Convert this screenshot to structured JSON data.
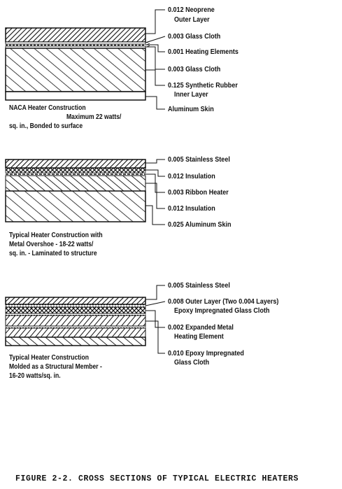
{
  "figure_title": "FIGURE 2-2.  CROSS SECTIONS OF TYPICAL ELECTRIC HEATERS",
  "panels": [
    {
      "labels": [
        "0.012 Neoprene",
        "Outer Layer",
        "0.003 Glass Cloth",
        "0.001 Heating Elements",
        "0.003 Glass Cloth",
        "0.125 Synthetic Rubber",
        "Inner Layer",
        "Aluminum Skin"
      ],
      "caption": [
        "NACA Heater Construction",
        "Maximum 22 watts/",
        "sq. in., Bonded to surface"
      ]
    },
    {
      "labels": [
        "0.005 Stainless Steel",
        "0.012 Insulation",
        "0.003 Ribbon Heater",
        "0.012 Insulation",
        "0.025 Aluminum Skin"
      ],
      "caption": [
        "Typical Heater Construction with",
        "Metal Overshoe - 18-22 watts/",
        "sq. in. - Laminated to structure"
      ]
    },
    {
      "labels": [
        "0.005 Stainless Steel",
        "0.008 Outer Layer (Two 0.004 Layers)",
        "Epoxy Impregnated Glass Cloth",
        "0.002 Expanded Metal",
        "Heating Element",
        "0.010 Epoxy Impregnated",
        "Glass Cloth"
      ],
      "caption": [
        "Typical Heater Construction",
        "Molded as a Structural Member -",
        "16-20 watts/sq. in."
      ]
    }
  ]
}
